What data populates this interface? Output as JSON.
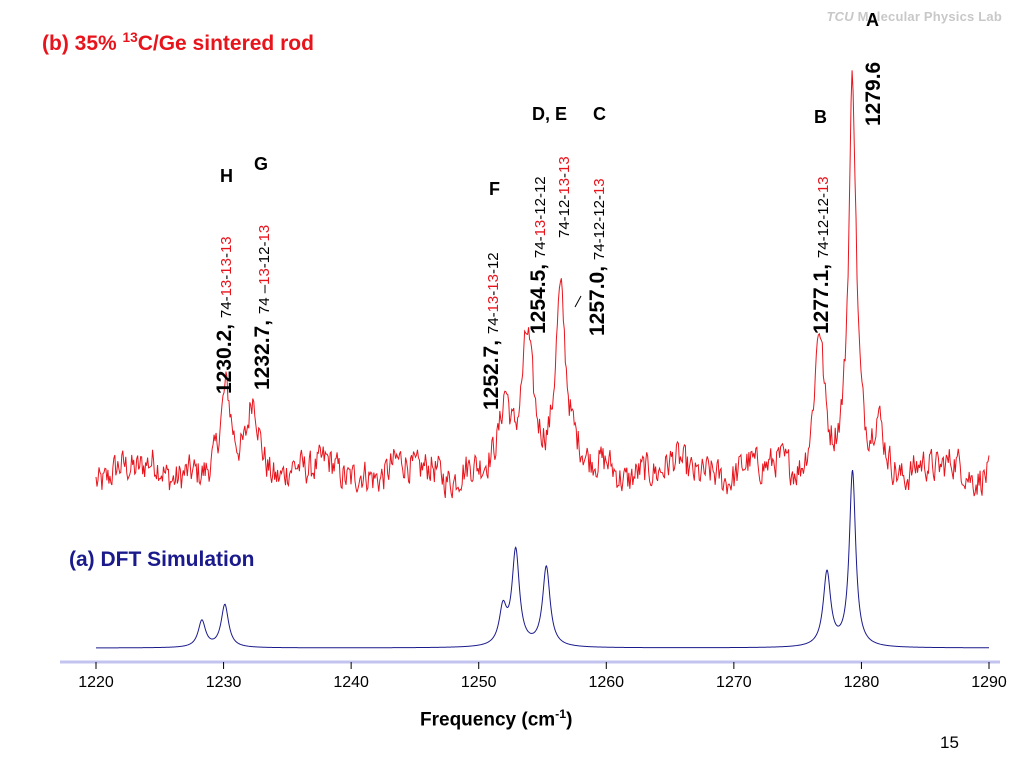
{
  "watermark": "Molecular Physics Lab",
  "slide_number": "15",
  "chart_data": {
    "type": "line",
    "xlabel": "Frequency (cm",
    "xlabel_sup": "-1",
    "xlabel_end": ")",
    "xlim": [
      1220,
      1290
    ],
    "xticks": [
      "1220",
      "1230",
      "1240",
      "1250",
      "1260",
      "1270",
      "1280",
      "1290"
    ],
    "grid": false,
    "series": [
      {
        "name": "(a) DFT Simulation",
        "color": "#1a1a8c",
        "peaks": [
          {
            "x": 1228.3,
            "height": 0.28,
            "width": 0.35
          },
          {
            "x": 1230.1,
            "height": 0.45,
            "width": 0.35
          },
          {
            "x": 1251.9,
            "height": 0.38,
            "width": 0.35
          },
          {
            "x": 1252.9,
            "height": 1.0,
            "width": 0.35
          },
          {
            "x": 1255.3,
            "height": 0.84,
            "width": 0.35
          },
          {
            "x": 1277.3,
            "height": 0.78,
            "width": 0.35
          },
          {
            "x": 1279.3,
            "height": 1.85,
            "width": 0.3
          }
        ]
      },
      {
        "name": "(b) 35% 13C/Ge sintered rod",
        "color": "#e8141c",
        "peaks": [
          {
            "x": 1230.2,
            "height": 0.75,
            "width": 0.45
          },
          {
            "x": 1232.3,
            "height": 0.75,
            "width": 0.5
          },
          {
            "x": 1252.1,
            "height": 0.6,
            "width": 0.4
          },
          {
            "x": 1253.8,
            "height": 1.45,
            "width": 0.55
          },
          {
            "x": 1256.4,
            "height": 1.9,
            "width": 0.5
          },
          {
            "x": 1276.7,
            "height": 1.5,
            "width": 0.45
          },
          {
            "x": 1279.3,
            "height": 4.0,
            "width": 0.35
          },
          {
            "x": 1281.3,
            "height": 0.5,
            "width": 0.45
          }
        ]
      }
    ],
    "annotations": {
      "H": {
        "letter": "H",
        "freq": "1230.2",
        "iso": [
          "74-",
          "13",
          "-",
          "13",
          "-",
          "13"
        ]
      },
      "G": {
        "letter": "G",
        "freq": "1232.7",
        "iso": [
          "74 –",
          "13",
          "-12-",
          "13"
        ]
      },
      "F": {
        "letter": "F",
        "freq": "1252.7",
        "iso": [
          "74-",
          "13",
          "-",
          "13",
          "-12"
        ]
      },
      "DE": {
        "letter": "D, E",
        "freq": "1254.5",
        "iso": [
          "74-",
          "13",
          "-12-12"
        ],
        "iso2": [
          "74-12-",
          "13",
          "-",
          "13"
        ]
      },
      "C": {
        "letter": "C",
        "freq": "1257.0",
        "iso": [
          "74-12-12-",
          "13"
        ]
      },
      "B": {
        "letter": "B",
        "freq": "1277.1",
        "iso": [
          "74-12-12-",
          "13"
        ]
      },
      "A": {
        "letter": "A",
        "freq": "1279.6"
      }
    },
    "titles": {
      "b_prefix": "(b) 35% ",
      "b_sup": "13",
      "b_suffix": "C/Ge sintered rod",
      "a": "(a) DFT Simulation"
    }
  }
}
